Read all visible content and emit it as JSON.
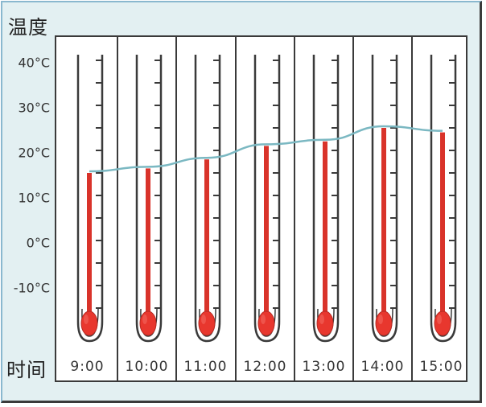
{
  "chart_data": {
    "type": "bar",
    "style": "thermometer pictograph with trend line",
    "title": "",
    "ylabel": "温度",
    "xlabel": "时间",
    "categories": [
      "9:00",
      "10:00",
      "11:00",
      "12:00",
      "13:00",
      "14:00",
      "15:00"
    ],
    "values": [
      15,
      16,
      18,
      21,
      22,
      25,
      24
    ],
    "unit": "°C",
    "y_ticks": [
      "40°C",
      "30°C",
      "20°C",
      "10°C",
      "0°C",
      "-10°C"
    ],
    "y_tick_values": [
      40,
      30,
      20,
      10,
      0,
      -10
    ],
    "ylim": [
      -15,
      40
    ],
    "minor_tick_step": 5,
    "grid": false,
    "legend": null,
    "series": [
      {
        "name": "thermometer",
        "values": [
          15,
          16,
          18,
          21,
          22,
          25,
          24
        ],
        "color": "#d9332a"
      },
      {
        "name": "trend line",
        "values": [
          15,
          16,
          18,
          21,
          22,
          25,
          24
        ],
        "color": "#7bb8c2"
      }
    ]
  },
  "labels": {
    "y_axis_title": "温度",
    "x_axis_title": "时间",
    "y_ticks": [
      "40°C",
      "30°C",
      "20°C",
      "10°C",
      "0°C",
      "-10°C"
    ],
    "times": [
      "9:00",
      "10:00",
      "11:00",
      "12:00",
      "13:00",
      "14:00",
      "15:00"
    ]
  },
  "colors": {
    "background": "#e3f0f2",
    "plot_background": "#ffffff",
    "mercury": "#d9332a",
    "bulb": "#e8372e",
    "trend_line": "#7bb8c2",
    "outline": "#3a3a3a"
  }
}
